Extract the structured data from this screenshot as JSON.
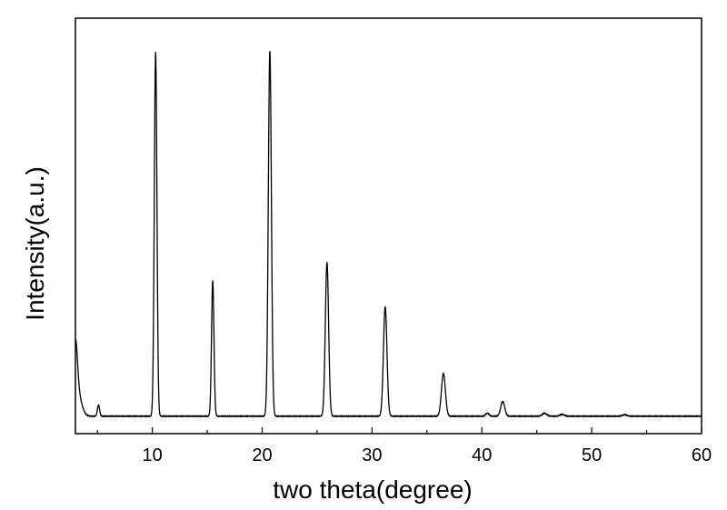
{
  "chart_data": {
    "type": "line",
    "title": "",
    "xlabel": "two theta(degree)",
    "ylabel": "Intensity(a.u.)",
    "xlim": [
      3,
      60
    ],
    "ylim": [
      0,
      100
    ],
    "y_ticks_labeled": false,
    "grid": false,
    "legend": "none",
    "x_ticks": [
      10,
      20,
      30,
      40,
      50,
      60
    ],
    "x_tick_labels": [
      "10",
      "20",
      "30",
      "40",
      "50",
      "60"
    ],
    "line_color": "#000000",
    "baseline": 2.5,
    "series": [
      {
        "name": "",
        "peaks": [
          {
            "x": 3.0,
            "height": 15.5,
            "width": 0.18
          },
          {
            "x": 3.2,
            "height": 6.0,
            "width": 0.35
          },
          {
            "x": 5.1,
            "height": 3.0,
            "width": 0.1
          },
          {
            "x": 10.3,
            "height": 98.0,
            "width": 0.12
          },
          {
            "x": 15.5,
            "height": 36.5,
            "width": 0.11
          },
          {
            "x": 20.7,
            "height": 98.5,
            "width": 0.14
          },
          {
            "x": 25.9,
            "height": 41.5,
            "width": 0.15
          },
          {
            "x": 31.2,
            "height": 29.5,
            "width": 0.16
          },
          {
            "x": 36.5,
            "height": 11.5,
            "width": 0.18
          },
          {
            "x": 40.5,
            "height": 0.8,
            "width": 0.15
          },
          {
            "x": 41.9,
            "height": 4.0,
            "width": 0.18
          },
          {
            "x": 45.7,
            "height": 0.8,
            "width": 0.2
          },
          {
            "x": 47.3,
            "height": 0.5,
            "width": 0.2
          },
          {
            "x": 53.0,
            "height": 0.4,
            "width": 0.2
          }
        ]
      }
    ]
  }
}
